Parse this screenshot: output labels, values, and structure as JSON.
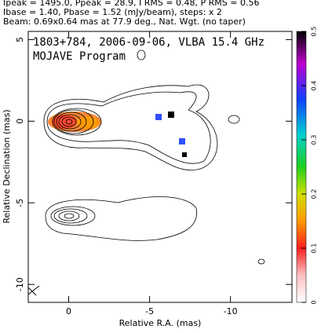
{
  "chart_data": {
    "type": "contour",
    "header": [
      "Ipeak = 1495.0, Ppeak = 28.9, I RMS = 0.48, P RMS = 0.56",
      "Ibase = 1.40, Pbase = 1.52 (mJy/beam), steps: x 2",
      "Beam: 0.69x0.64 mas at 77.9 deg., Nat. Wgt. (no taper)"
    ],
    "title": "1803+784, 2006-09-06, VLBA 15.4 GHz",
    "subtitle": "MOJAVE Program",
    "xlabel": "Relative R.A. (mas)",
    "ylabel": "Relative Declination (mas)",
    "xlim": [
      2.5,
      -13.8
    ],
    "xticks": [
      0,
      -5,
      -10
    ],
    "ylim": [
      5.5,
      -11.1
    ],
    "yticks": [
      5,
      0,
      -5,
      -10
    ],
    "colorbar": {
      "lim": [
        0,
        0.5
      ],
      "ticks": [
        0,
        0.1,
        0.2,
        0.3,
        0.4,
        0.5
      ]
    }
  }
}
